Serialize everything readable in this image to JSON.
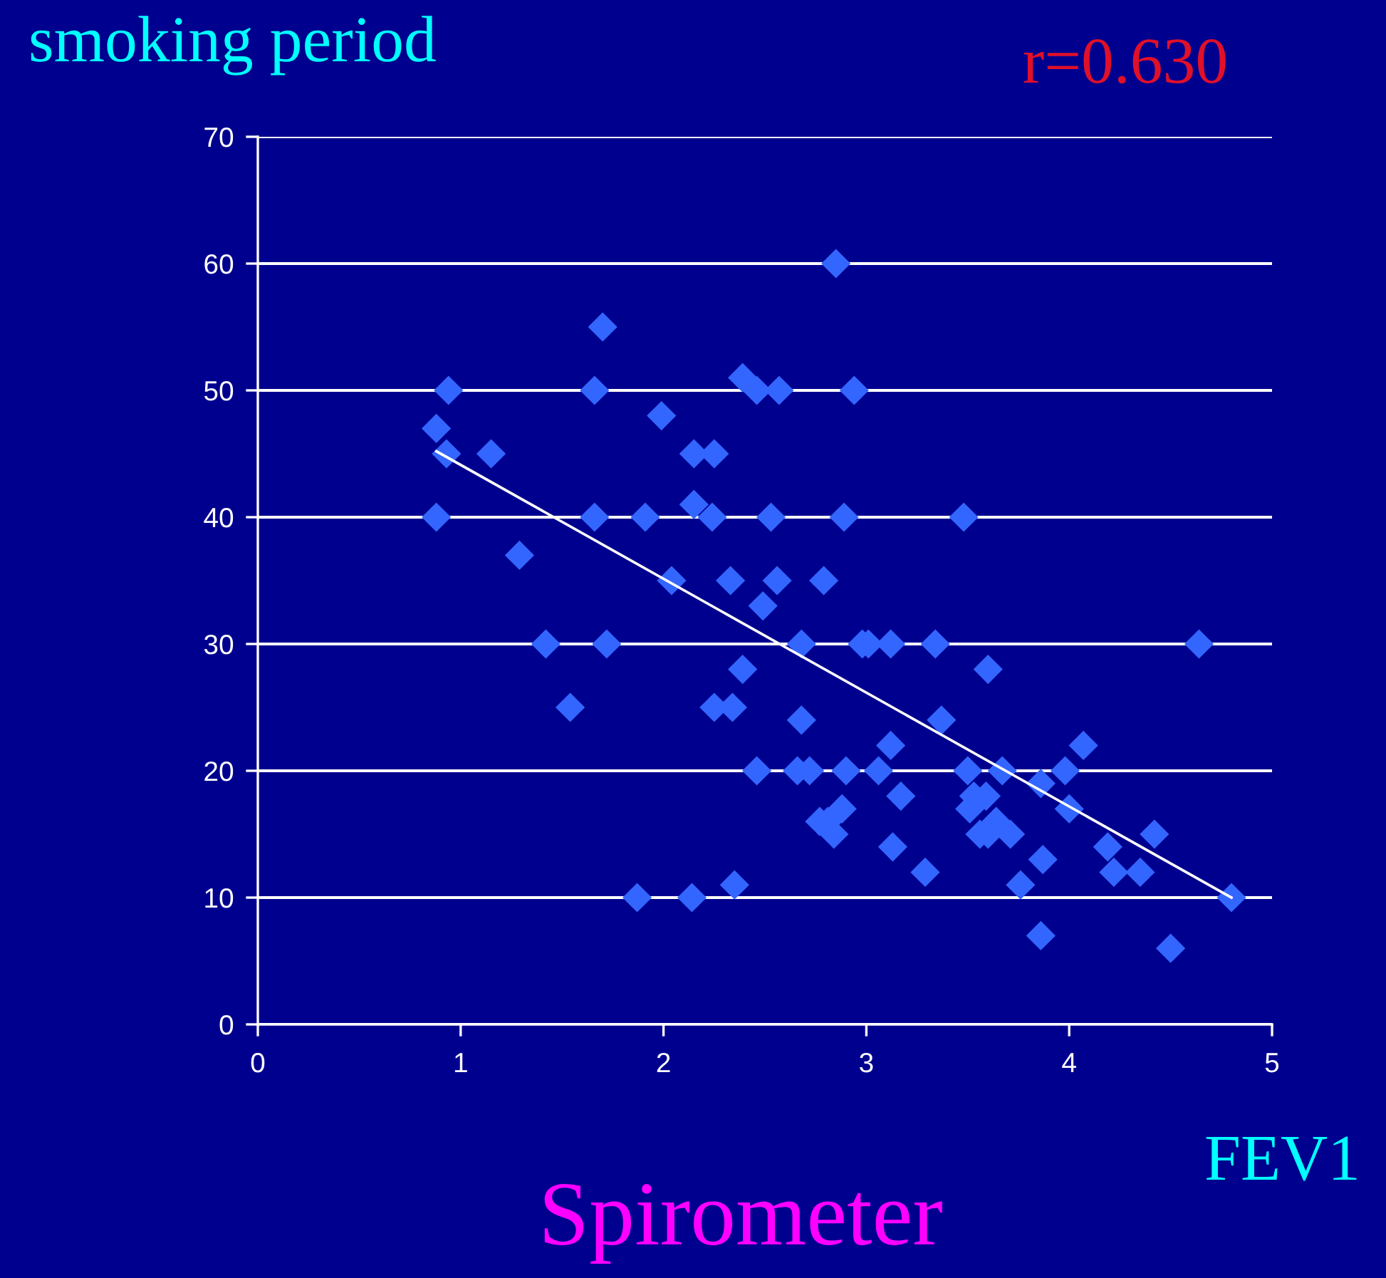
{
  "chart_data": {
    "type": "scatter",
    "title": "Spirometer",
    "ylabel": "smoking period",
    "xlabel": "FEV1",
    "annotations": [
      "r=0.630"
    ],
    "xlim": [
      0,
      5
    ],
    "xticks": [
      0,
      1,
      2,
      3,
      4,
      5
    ],
    "ylim": [
      0,
      70
    ],
    "yticks": [
      0,
      10,
      20,
      30,
      40,
      50,
      60,
      70
    ],
    "grid": "y",
    "marker": "diamond",
    "legend": false,
    "series": [
      {
        "color": "#3366ff",
        "x": [
          0.88,
          0.94,
          0.93,
          0.88,
          1.15,
          1.29,
          1.42,
          1.54,
          1.66,
          1.7,
          1.66,
          1.72,
          1.87,
          1.91,
          1.99,
          2.04,
          2.14,
          2.15,
          2.25,
          2.15,
          2.24,
          2.25,
          2.33,
          2.34,
          2.35,
          2.39,
          2.39,
          2.46,
          2.57,
          2.53,
          2.56,
          2.49,
          2.46,
          2.68,
          2.68,
          2.66,
          2.72,
          2.79,
          2.77,
          2.81,
          2.84,
          2.85,
          2.88,
          2.9,
          2.89,
          2.94,
          2.98,
          3.01,
          3.06,
          3.12,
          3.12,
          3.13,
          3.17,
          3.29,
          3.34,
          3.37,
          3.48,
          3.5,
          3.51,
          3.53,
          3.56,
          3.59,
          3.6,
          3.6,
          3.64,
          3.67,
          3.71,
          3.76,
          3.86,
          3.87,
          3.86,
          3.98,
          4.0,
          4.07,
          4.19,
          4.22,
          4.35,
          4.42,
          4.5,
          4.64,
          4.8
        ],
        "values": [
          47,
          50,
          45,
          40,
          45,
          37,
          30,
          25,
          50,
          55,
          40,
          30,
          10,
          40,
          48,
          35,
          10,
          45,
          45,
          41,
          40,
          25,
          35,
          25,
          11,
          28,
          51,
          50,
          50,
          40,
          35,
          33,
          20,
          30,
          24,
          20,
          20,
          35,
          16,
          16,
          15,
          60,
          17,
          20,
          40,
          50,
          30,
          30,
          20,
          30,
          22,
          14,
          18,
          12,
          30,
          24,
          40,
          20,
          17,
          18,
          15,
          18,
          28,
          15,
          16,
          20,
          15,
          11,
          7,
          13,
          19,
          20,
          17,
          22,
          14,
          12,
          12,
          15,
          6,
          30,
          10
        ]
      },
      {
        "type": "line",
        "color": "#ffffff",
        "marker": "none",
        "x": [
          0.88,
          4.8
        ],
        "values": [
          45.2,
          10
        ]
      }
    ]
  }
}
